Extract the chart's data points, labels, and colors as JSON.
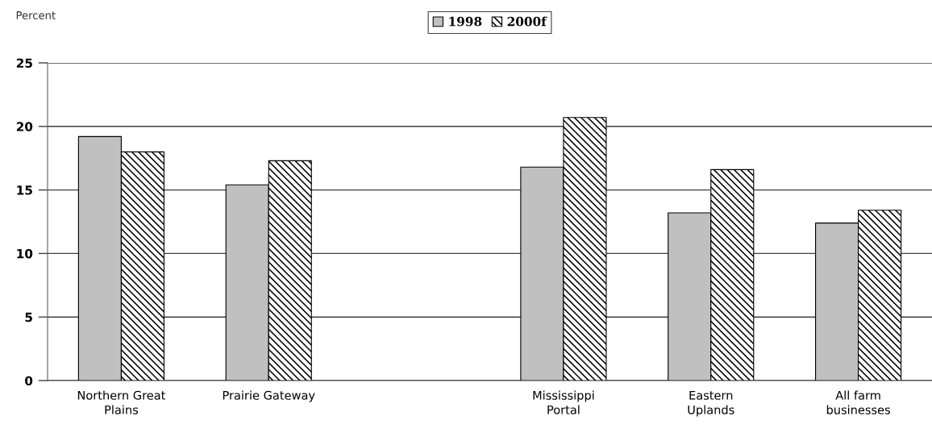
{
  "chart_data": {
    "type": "bar",
    "ylabel": "Percent",
    "categories": [
      "Northern Great\nPlains",
      "Prairie Gateway",
      null,
      "Mississippi\nPortal",
      "Eastern\nUplands",
      "All farm\nbusinesses"
    ],
    "series": [
      {
        "name": "1998",
        "color": "#c0c0c0",
        "values": [
          19.2,
          15.4,
          null,
          16.8,
          13.2,
          12.4
        ]
      },
      {
        "name": "2000f",
        "color": "#000000",
        "values": [
          18.0,
          17.3,
          null,
          20.7,
          16.6,
          13.4
        ]
      }
    ],
    "ylim": [
      0,
      25
    ],
    "yticks": [
      0,
      5,
      10,
      15,
      20,
      25
    ],
    "grid": "y",
    "legend": "top"
  }
}
